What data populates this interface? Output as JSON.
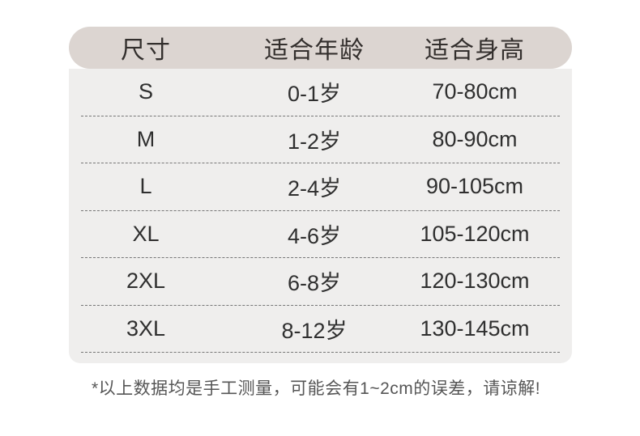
{
  "chart_data": {
    "type": "table",
    "title": "",
    "columns": [
      "尺寸",
      "适合年龄",
      "适合身高"
    ],
    "rows": [
      [
        "S",
        "0-1岁",
        "70-80cm"
      ],
      [
        "M",
        "1-2岁",
        "80-90cm"
      ],
      [
        "L",
        "2-4岁",
        "90-105cm"
      ],
      [
        "XL",
        "4-6岁",
        "105-120cm"
      ],
      [
        "2XL",
        "6-8岁",
        "120-130cm"
      ],
      [
        "3XL",
        "8-12岁",
        "130-145cm"
      ]
    ],
    "footnote": "*以上数据均是手工测量，可能会有1~2cm的误差，请谅解!"
  },
  "colors": {
    "page_bg": "#ffffff",
    "header_pill_bg": "#dcd5d1",
    "panel_bg": "#efeeed",
    "divider": "#767676",
    "header_text": "#332f2d",
    "row_text": "#2f2f2f",
    "footnote_text": "#565656"
  }
}
